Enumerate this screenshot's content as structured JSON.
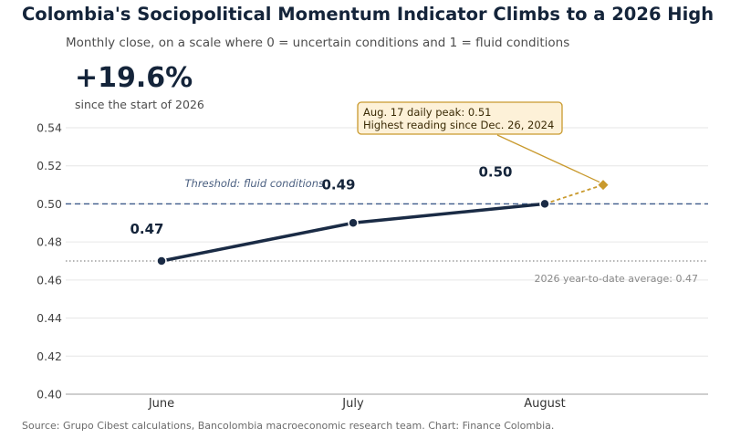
{
  "header": {
    "title": "Colombia's Sociopolitical Momentum Indicator Climbs to a 2026 High",
    "subtitle": "Monthly close, on a scale where 0 = uncertain conditions and 1 = fluid conditions"
  },
  "stat": {
    "value": "+19.6%",
    "label": "since the start of 2026"
  },
  "footer": {
    "source": "Source: Grupo Cibest calculations, Bancolombia macroeconomic research team.  Chart: Finance Colombia."
  },
  "chart_data": {
    "type": "line",
    "categories": [
      "June",
      "July",
      "August"
    ],
    "series": [
      {
        "values": [
          0.47,
          0.49,
          0.5
        ],
        "data_labels": [
          "0.47",
          "0.49",
          "0.50"
        ],
        "color": "#1a2b45"
      }
    ],
    "peak": {
      "value": 0.51,
      "color": "#c99a2e",
      "annotation": [
        "Aug. 17 daily peak: 0.51",
        "Highest reading since Dec. 26, 2024"
      ]
    },
    "threshold": {
      "value": 0.5,
      "label": "Threshold: fluid conditions",
      "color": "#3c5a8a"
    },
    "average": {
      "value": 0.47,
      "label": "2026 year-to-date average: 0.47"
    },
    "ylim": [
      0.4,
      0.54
    ],
    "yticks": [
      "0.40",
      "0.42",
      "0.44",
      "0.46",
      "0.48",
      "0.50",
      "0.52",
      "0.54"
    ],
    "grid": true
  }
}
